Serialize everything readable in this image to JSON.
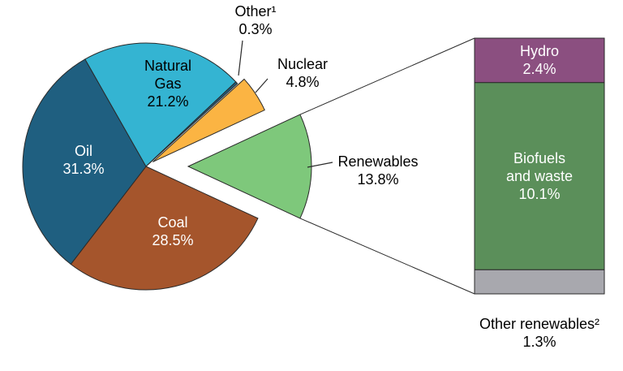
{
  "chart_data": [
    {
      "type": "pie",
      "categories": [
        "Renewables",
        "Coal",
        "Oil",
        "Natural Gas",
        "Other¹",
        "Nuclear"
      ],
      "values": [
        13.8,
        28.5,
        31.3,
        21.2,
        0.3,
        4.8
      ],
      "value_labels": [
        "13.8%",
        "28.5%",
        "31.3%",
        "21.2%",
        "0.3%",
        "4.8%"
      ],
      "colors": [
        "#7ec87b",
        "#a5552c",
        "#1f5f80",
        "#34b4d2",
        "#1f5f80",
        "#fbb443"
      ],
      "exploded": "Renewables"
    },
    {
      "type": "stacked-bar",
      "categories": [
        "Hydro",
        "Biofuels and waste",
        "Other renewables²"
      ],
      "values": [
        2.4,
        10.1,
        1.3
      ],
      "value_labels": [
        "2.4%",
        "10.1%",
        "1.3%"
      ],
      "colors": [
        "#8b4f80",
        "#5b8f5a",
        "#a8a8ae"
      ]
    }
  ]
}
